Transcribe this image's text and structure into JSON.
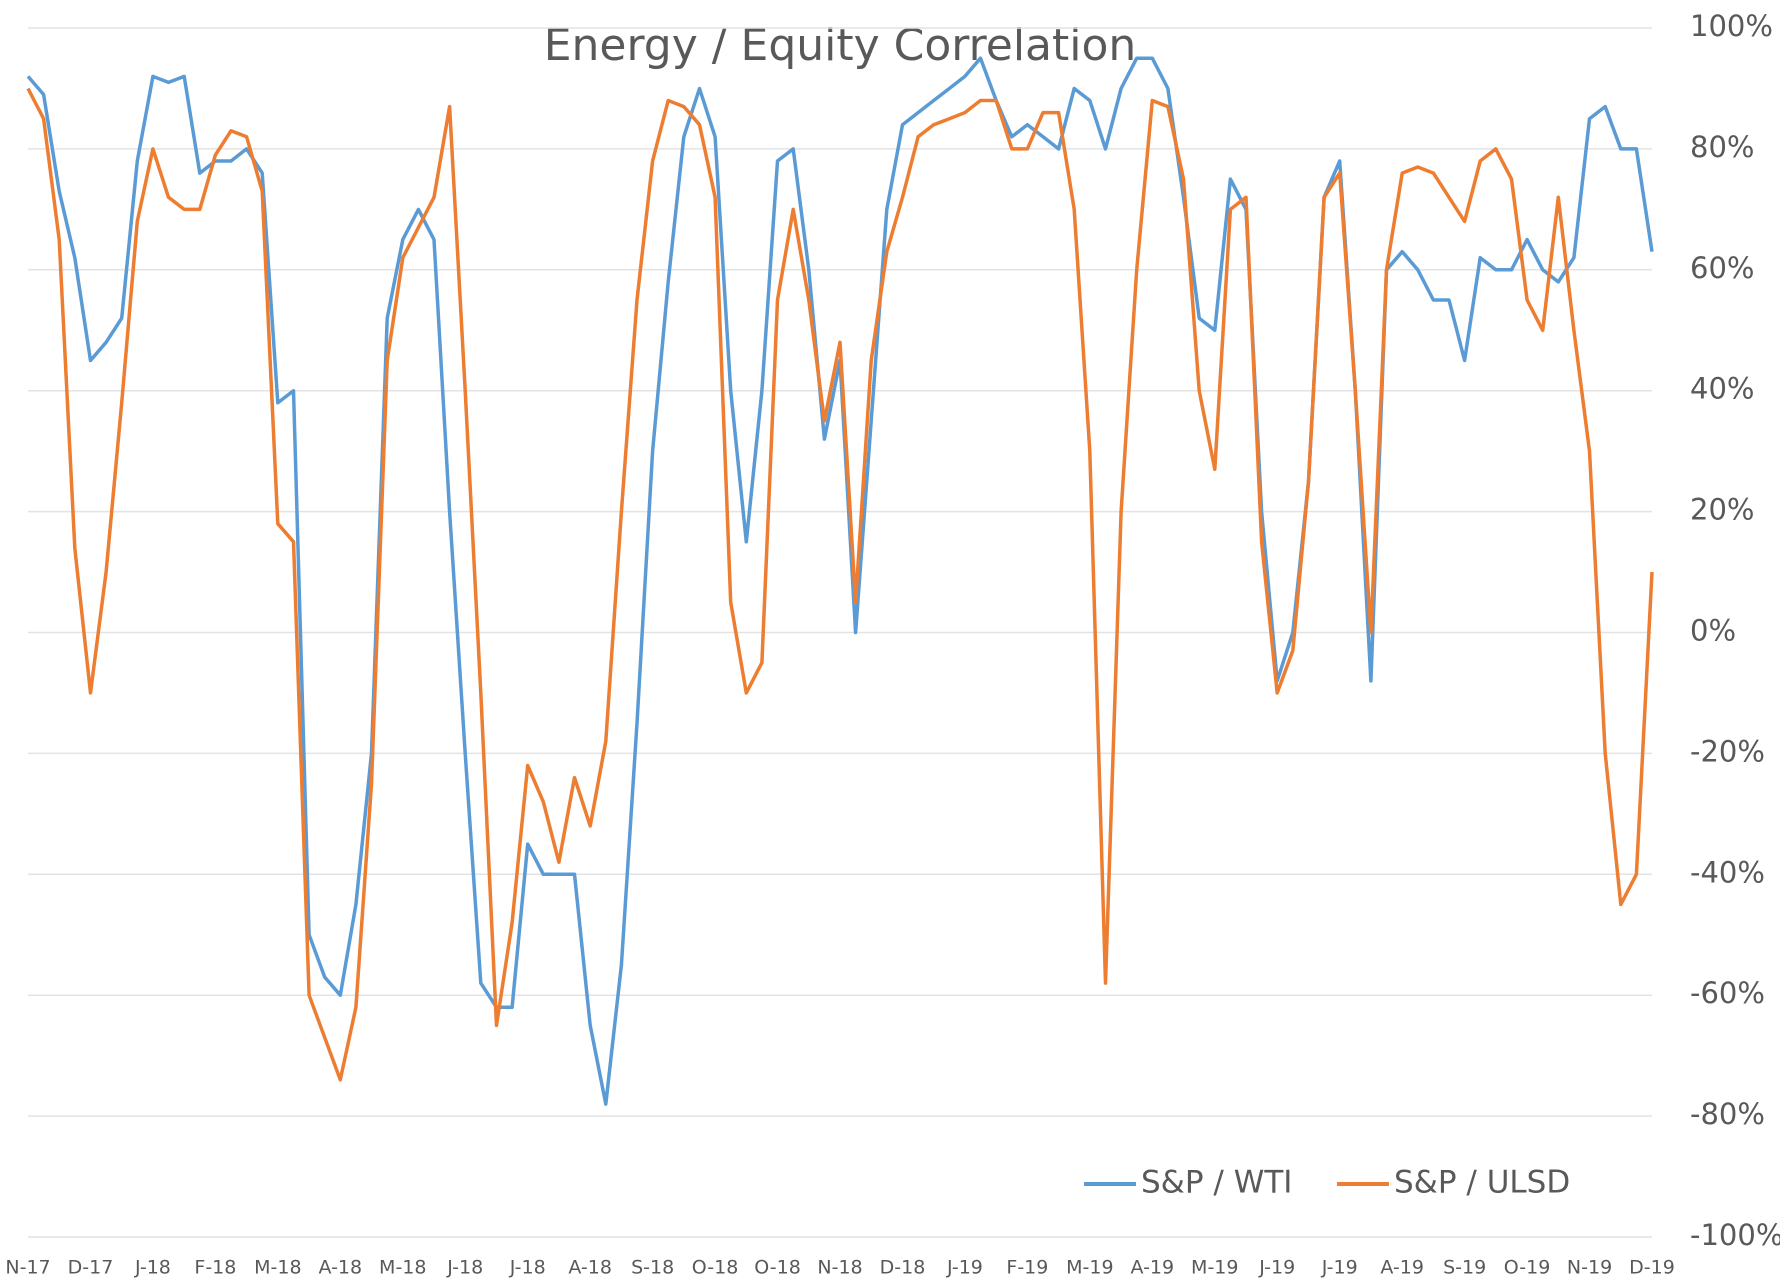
{
  "chart_data": {
    "type": "line",
    "title": "Energy / Equity Correlation",
    "categories": [
      "N-17",
      null,
      null,
      null,
      "D-17",
      null,
      null,
      null,
      "J-18",
      null,
      null,
      null,
      "F-18",
      null,
      null,
      null,
      "M-18",
      null,
      null,
      null,
      "A-18",
      null,
      null,
      null,
      "M-18",
      null,
      null,
      null,
      "J-18",
      null,
      null,
      null,
      "J-18",
      null,
      null,
      null,
      "A-18",
      null,
      null,
      null,
      "S-18",
      null,
      null,
      null,
      "O-18",
      null,
      null,
      null,
      "O-18",
      null,
      null,
      null,
      "N-18",
      null,
      null,
      null,
      "D-18",
      null,
      null,
      null,
      "J-19",
      null,
      null,
      null,
      "F-19",
      null,
      null,
      null,
      "M-19",
      null,
      null,
      null,
      "A-19",
      null,
      null,
      null,
      "M-19",
      null,
      null,
      null,
      "J-19",
      null,
      null,
      null,
      "J-19",
      null,
      null,
      null,
      "A-19",
      null,
      null,
      null,
      "S-19",
      null,
      null,
      null,
      "O-19",
      null,
      null,
      null,
      "N-19",
      null,
      null,
      null,
      "D-19"
    ],
    "series": [
      {
        "name": "S&P / WTI",
        "color": "#5b9bd5",
        "values": [
          92,
          89,
          73,
          62,
          45,
          48,
          52,
          78,
          92,
          91,
          92,
          76,
          78,
          78,
          80,
          76,
          38,
          40,
          -50,
          -57,
          -60,
          -45,
          -20,
          52,
          65,
          70,
          65,
          20,
          -20,
          -58,
          -62,
          -62,
          -35,
          -40,
          -40,
          -40,
          -65,
          -78,
          -55,
          -15,
          30,
          58,
          82,
          90,
          82,
          40,
          15,
          40,
          78,
          80,
          60,
          32,
          45,
          0,
          35,
          70,
          84,
          86,
          88,
          90,
          92,
          95,
          88,
          82,
          84,
          82,
          80,
          90,
          88,
          80,
          90,
          95,
          95,
          90,
          72,
          52,
          50,
          75,
          70,
          20,
          -8,
          0,
          25,
          72,
          78,
          40,
          -8,
          60,
          63,
          60,
          55,
          55,
          45,
          62,
          60,
          60,
          65,
          60,
          58,
          62,
          85,
          87,
          80,
          80,
          63
        ]
      },
      {
        "name": "S&P / ULSD",
        "color": "#ed7d31",
        "values": [
          90,
          85,
          65,
          14,
          -10,
          10,
          38,
          68,
          80,
          72,
          70,
          70,
          79,
          83,
          82,
          73,
          18,
          15,
          -60,
          -67,
          -74,
          -62,
          -25,
          45,
          62,
          67,
          72,
          87,
          40,
          -10,
          -65,
          -48,
          -22,
          -28,
          -38,
          -24,
          -32,
          -18,
          20,
          55,
          78,
          88,
          87,
          84,
          72,
          5,
          -10,
          -5,
          55,
          70,
          55,
          35,
          48,
          5,
          45,
          63,
          72,
          82,
          84,
          85,
          86,
          88,
          88,
          80,
          80,
          86,
          86,
          70,
          30,
          -58,
          20,
          60,
          88,
          87,
          75,
          40,
          27,
          70,
          72,
          15,
          -10,
          -3,
          25,
          72,
          76,
          40,
          0,
          60,
          76,
          77,
          76,
          72,
          68,
          78,
          80,
          75,
          55,
          50,
          72,
          50,
          30,
          -20,
          -45,
          -40,
          10
        ]
      }
    ],
    "ylim": [
      -100,
      100
    ],
    "yticks": [
      {
        "value": -100,
        "label": "-100%"
      },
      {
        "value": -80,
        "label": "-80%"
      },
      {
        "value": -60,
        "label": "-60%"
      },
      {
        "value": -40,
        "label": "-40%"
      },
      {
        "value": -20,
        "label": "-20%"
      },
      {
        "value": 0,
        "label": "0%"
      },
      {
        "value": 20,
        "label": "20%"
      },
      {
        "value": 40,
        "label": "40%"
      },
      {
        "value": 60,
        "label": "60%"
      },
      {
        "value": 80,
        "label": "80%"
      },
      {
        "value": 100,
        "label": "100%"
      }
    ],
    "grid": true,
    "legend": "bottom-right"
  }
}
